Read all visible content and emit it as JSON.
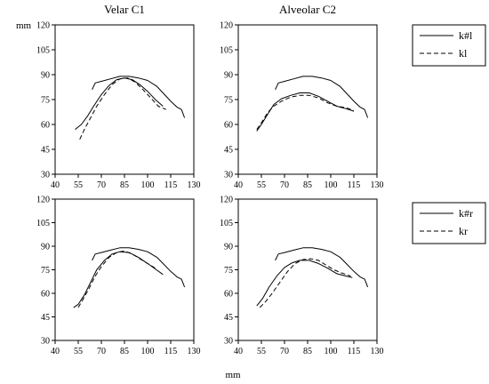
{
  "figure": {
    "y_unit": "mm",
    "x_unit": "mm"
  },
  "chart_data": [
    {
      "type": "line",
      "title": "Velar C1",
      "xlim": [
        40,
        130
      ],
      "ylim": [
        30,
        120
      ],
      "xticks": [
        40,
        55,
        70,
        85,
        100,
        115,
        130
      ],
      "yticks": [
        30,
        45,
        60,
        75,
        90,
        105,
        120
      ],
      "grid": false,
      "series": [
        {
          "name": "k#l",
          "style": "solid",
          "points": [
            [
              64,
              81
            ],
            [
              66,
              85
            ],
            [
              70,
              86
            ],
            [
              76,
              87.5
            ],
            [
              82,
              89
            ],
            [
              88,
              89
            ],
            [
              94,
              88
            ],
            [
              100,
              86.5
            ],
            [
              106,
              83
            ],
            [
              110,
              79
            ],
            [
              115,
              74
            ],
            [
              119,
              70.5
            ],
            [
              122,
              69
            ],
            [
              124,
              64
            ]
          ]
        },
        {
          "name": "",
          "style": "solid",
          "points": [
            [
              53,
              57
            ],
            [
              57,
              60
            ],
            [
              61,
              65
            ],
            [
              65,
              71
            ],
            [
              70,
              78
            ],
            [
              75,
              83.5
            ],
            [
              80,
              87
            ],
            [
              85,
              88
            ],
            [
              90,
              87
            ],
            [
              95,
              84
            ],
            [
              100,
              80
            ],
            [
              105,
              75
            ],
            [
              110,
              71
            ]
          ]
        },
        {
          "name": "kl",
          "style": "dashed",
          "points": [
            [
              56,
              51
            ],
            [
              59,
              57
            ],
            [
              63,
              64
            ],
            [
              67,
              71
            ],
            [
              72,
              78
            ],
            [
              77,
              84
            ],
            [
              82,
              87.5
            ],
            [
              87,
              88
            ],
            [
              92,
              85.5
            ],
            [
              97,
              81
            ],
            [
              102,
              76
            ],
            [
              107,
              71
            ],
            [
              112,
              69
            ]
          ]
        }
      ]
    },
    {
      "type": "line",
      "title": "Alveolar C2",
      "xlim": [
        40,
        130
      ],
      "ylim": [
        30,
        120
      ],
      "xticks": [
        40,
        55,
        70,
        85,
        100,
        115,
        130
      ],
      "yticks": [
        30,
        45,
        60,
        75,
        90,
        105,
        120
      ],
      "grid": false,
      "legend": {
        "position": "right",
        "entries": [
          {
            "label": "k#l",
            "style": "solid"
          },
          {
            "label": "kl",
            "style": "dashed"
          }
        ]
      },
      "series": [
        {
          "name": "k#l",
          "style": "solid",
          "points": [
            [
              64,
              81
            ],
            [
              66,
              85
            ],
            [
              70,
              86
            ],
            [
              76,
              87.5
            ],
            [
              82,
              89
            ],
            [
              88,
              89
            ],
            [
              94,
              88
            ],
            [
              100,
              86.5
            ],
            [
              106,
              83
            ],
            [
              110,
              79
            ],
            [
              115,
              74
            ],
            [
              119,
              70.5
            ],
            [
              122,
              69
            ],
            [
              124,
              64
            ]
          ]
        },
        {
          "name": "",
          "style": "solid",
          "points": [
            [
              52,
              56
            ],
            [
              55,
              60
            ],
            [
              59,
              66
            ],
            [
              63,
              72
            ],
            [
              68,
              75.5
            ],
            [
              74,
              77.5
            ],
            [
              80,
              79
            ],
            [
              86,
              79
            ],
            [
              92,
              77
            ],
            [
              98,
              74
            ],
            [
              104,
              71
            ],
            [
              110,
              69.5
            ],
            [
              115,
              68
            ]
          ]
        },
        {
          "name": "kl",
          "style": "dashed",
          "points": [
            [
              52,
              57
            ],
            [
              55,
              61
            ],
            [
              59,
              67
            ],
            [
              63,
              71
            ],
            [
              68,
              74
            ],
            [
              74,
              76.5
            ],
            [
              80,
              77.5
            ],
            [
              86,
              77.5
            ],
            [
              92,
              76
            ],
            [
              98,
              73
            ],
            [
              104,
              71
            ],
            [
              110,
              70
            ],
            [
              115,
              68.5
            ]
          ]
        }
      ]
    },
    {
      "type": "line",
      "title": "",
      "xlim": [
        40,
        130
      ],
      "ylim": [
        30,
        120
      ],
      "xticks": [
        40,
        55,
        70,
        85,
        100,
        115,
        130
      ],
      "yticks": [
        30,
        45,
        60,
        75,
        90,
        105,
        120
      ],
      "grid": false,
      "series": [
        {
          "name": "k#r",
          "style": "solid",
          "points": [
            [
              64,
              81
            ],
            [
              66,
              85
            ],
            [
              70,
              86
            ],
            [
              76,
              87.5
            ],
            [
              82,
              89
            ],
            [
              88,
              89
            ],
            [
              94,
              88
            ],
            [
              100,
              86.5
            ],
            [
              106,
              83
            ],
            [
              110,
              79
            ],
            [
              115,
              74
            ],
            [
              119,
              70.5
            ],
            [
              122,
              69
            ],
            [
              124,
              64
            ]
          ]
        },
        {
          "name": "",
          "style": "solid",
          "points": [
            [
              52,
              51
            ],
            [
              55,
              53
            ],
            [
              59,
              59
            ],
            [
              63,
              67
            ],
            [
              67,
              75
            ],
            [
              72,
              81
            ],
            [
              77,
              85
            ],
            [
              82,
              86.5
            ],
            [
              88,
              86
            ],
            [
              94,
              83
            ],
            [
              100,
              79
            ],
            [
              105,
              75.5
            ],
            [
              110,
              72
            ]
          ]
        },
        {
          "name": "kr",
          "style": "dashed",
          "points": [
            [
              55,
              51
            ],
            [
              58,
              56
            ],
            [
              62,
              63
            ],
            [
              66,
              71
            ],
            [
              70,
              77
            ],
            [
              75,
              83
            ],
            [
              80,
              86
            ],
            [
              85,
              87
            ],
            [
              90,
              85
            ],
            [
              95,
              82
            ],
            [
              100,
              79
            ],
            [
              105,
              76
            ]
          ]
        }
      ]
    },
    {
      "type": "line",
      "title": "",
      "xlim": [
        40,
        130
      ],
      "ylim": [
        30,
        120
      ],
      "xticks": [
        40,
        55,
        70,
        85,
        100,
        115,
        130
      ],
      "yticks": [
        30,
        45,
        60,
        75,
        90,
        105,
        120
      ],
      "grid": false,
      "legend": {
        "position": "right",
        "entries": [
          {
            "label": "k#r",
            "style": "solid"
          },
          {
            "label": "kr",
            "style": "dashed"
          }
        ]
      },
      "series": [
        {
          "name": "k#r",
          "style": "solid",
          "points": [
            [
              64,
              81
            ],
            [
              66,
              85
            ],
            [
              70,
              86
            ],
            [
              76,
              87.5
            ],
            [
              82,
              89
            ],
            [
              88,
              89
            ],
            [
              94,
              88
            ],
            [
              100,
              86.5
            ],
            [
              106,
              83
            ],
            [
              110,
              79
            ],
            [
              115,
              74
            ],
            [
              119,
              70.5
            ],
            [
              122,
              69
            ],
            [
              124,
              64
            ]
          ]
        },
        {
          "name": "",
          "style": "solid",
          "points": [
            [
              52,
              52
            ],
            [
              56,
              57
            ],
            [
              60,
              64
            ],
            [
              65,
              71
            ],
            [
              70,
              76.5
            ],
            [
              75,
              79.5
            ],
            [
              80,
              81
            ],
            [
              86,
              81
            ],
            [
              92,
              79
            ],
            [
              98,
              76
            ],
            [
              104,
              72.5
            ],
            [
              110,
              71
            ],
            [
              114,
              70
            ]
          ]
        },
        {
          "name": "kr",
          "style": "dashed",
          "points": [
            [
              54,
              51
            ],
            [
              58,
              55
            ],
            [
              62,
              60
            ],
            [
              67,
              67
            ],
            [
              72,
              74
            ],
            [
              77,
              79
            ],
            [
              82,
              81.5
            ],
            [
              87,
              82
            ],
            [
              92,
              81
            ],
            [
              97,
              78
            ],
            [
              102,
              75
            ],
            [
              107,
              73
            ],
            [
              113,
              71
            ]
          ]
        }
      ]
    }
  ]
}
